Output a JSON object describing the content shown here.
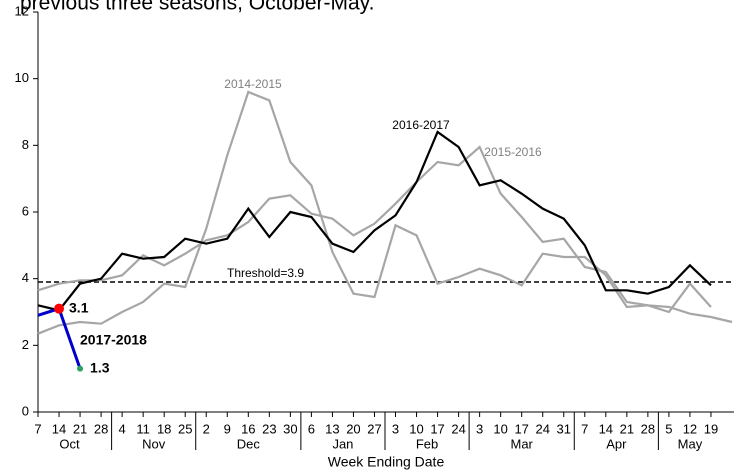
{
  "chart_data": {
    "type": "line",
    "title": "previous three seasons, October-May.",
    "x_label": "Week Ending Date",
    "categories": [
      "7",
      "14",
      "21",
      "28",
      "4",
      "11",
      "18",
      "25",
      "2",
      "9",
      "16",
      "23",
      "30",
      "6",
      "13",
      "20",
      "27",
      "3",
      "10",
      "17",
      "24",
      "3",
      "10",
      "17",
      "24",
      "31",
      "7",
      "14",
      "21",
      "28",
      "5",
      "12",
      "19",
      null
    ],
    "months": [
      "Oct",
      "Nov",
      "Dec",
      "Jan",
      "Feb",
      "Mar",
      "Apr",
      "May"
    ],
    "ylim": [
      0,
      12
    ],
    "yticks": [
      0,
      2,
      4,
      6,
      8,
      10,
      12
    ],
    "threshold": {
      "value": 3.9,
      "label": "Threshold=3.9"
    },
    "series": [
      {
        "name": "2014-2015",
        "color": "#a6a6a6",
        "values": [
          2.35,
          2.6,
          2.7,
          2.65,
          3.0,
          3.3,
          3.85,
          3.75,
          5.5,
          7.7,
          9.6,
          9.35,
          7.5,
          6.8,
          4.8,
          3.55,
          3.45,
          5.6,
          5.3,
          3.85,
          4.05,
          4.3,
          4.1,
          3.8,
          4.75,
          4.65,
          4.65,
          4.1,
          3.15,
          3.2,
          3.0,
          3.85,
          3.15,
          null
        ]
      },
      {
        "name": "2015-2016",
        "color": "#a6a6a6",
        "values": [
          3.65,
          3.85,
          3.95,
          3.95,
          4.1,
          4.7,
          4.4,
          4.75,
          5.15,
          5.3,
          5.7,
          6.4,
          6.5,
          5.95,
          5.8,
          5.3,
          5.65,
          6.25,
          6.9,
          7.5,
          7.4,
          7.95,
          6.55,
          5.85,
          5.1,
          5.2,
          4.35,
          4.2,
          3.3,
          3.2,
          3.15,
          2.95,
          2.85,
          2.7
        ]
      },
      {
        "name": "2016-2017",
        "color": "#000000",
        "values": [
          3.2,
          3.05,
          3.85,
          4.0,
          4.75,
          4.6,
          4.65,
          5.2,
          5.05,
          5.2,
          6.1,
          5.25,
          6.0,
          5.85,
          5.05,
          4.8,
          5.45,
          5.9,
          6.9,
          8.4,
          7.95,
          6.8,
          6.95,
          6.55,
          6.1,
          5.8,
          5.0,
          3.65,
          3.65,
          3.55,
          3.75,
          4.4,
          3.8,
          null
        ]
      },
      {
        "name": "2017-2018",
        "color": "#0000cc",
        "values": [
          2.9,
          3.1,
          1.3,
          null,
          null,
          null,
          null,
          null,
          null,
          null,
          null,
          null,
          null,
          null,
          null,
          null,
          null,
          null,
          null,
          null,
          null,
          null,
          null,
          null,
          null,
          null,
          null,
          null,
          null,
          null,
          null,
          null,
          null,
          null
        ],
        "marker_colors": [
          null,
          "#ff0000",
          "#2ca25f"
        ]
      }
    ]
  }
}
